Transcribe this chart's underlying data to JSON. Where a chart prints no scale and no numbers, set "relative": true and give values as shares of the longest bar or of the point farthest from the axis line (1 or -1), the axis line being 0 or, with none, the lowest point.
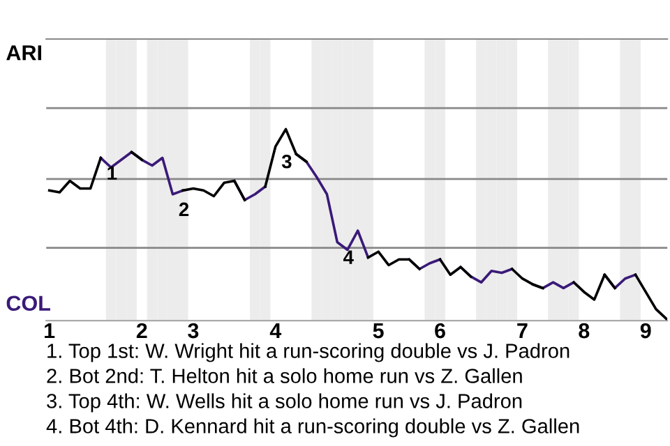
{
  "chart_data": {
    "type": "line",
    "relative": true,
    "categories": [
      "1",
      null,
      null,
      null,
      null,
      null,
      null,
      null,
      null,
      "2",
      null,
      null,
      null,
      null,
      "3",
      null,
      null,
      null,
      null,
      null,
      null,
      null,
      "4",
      null,
      null,
      null,
      null,
      null,
      null,
      null,
      null,
      null,
      "5",
      null,
      null,
      null,
      null,
      null,
      "6",
      null,
      null,
      null,
      null,
      null,
      null,
      null,
      "7",
      null,
      null,
      null,
      null,
      null,
      "8",
      null,
      null,
      null,
      null,
      null,
      "9",
      null,
      null
    ],
    "series": [
      {
        "color": "#3a1a78",
        "values": [
          null,
          null,
          null,
          null,
          null,
          0.85,
          0.8,
          0.84,
          0.88,
          0.84,
          0.81,
          0.85,
          0.66,
          0.68,
          null,
          null,
          null,
          null,
          0.73,
          0.63,
          0.66,
          0.7,
          null,
          null,
          0.87,
          0.83,
          0.75,
          0.66,
          0.41,
          0.37,
          0.47,
          0.33,
          null,
          null,
          null,
          0.32,
          0.27,
          0.3,
          0.32,
          null,
          0.28,
          0.23,
          0.2,
          0.26,
          0.25,
          0.27,
          null,
          0.19,
          0.17,
          0.2,
          0.17,
          0.2,
          null,
          null,
          0.24,
          0.17,
          0.22,
          0.24,
          null,
          null,
          null
        ]
      },
      {
        "color": "#000000",
        "values": [
          0.68,
          0.67,
          0.73,
          0.69,
          0.69,
          0.85,
          null,
          null,
          0.88,
          0.84,
          null,
          null,
          null,
          0.68,
          0.69,
          0.68,
          0.65,
          0.72,
          0.73,
          0.63,
          null,
          0.7,
          0.91,
          1.0,
          0.87,
          0.83,
          null,
          null,
          null,
          null,
          null,
          0.33,
          0.36,
          0.29,
          0.32,
          0.32,
          0.27,
          null,
          0.32,
          0.24,
          0.28,
          0.23,
          null,
          null,
          null,
          0.27,
          0.22,
          0.19,
          0.17,
          null,
          null,
          0.2,
          0.15,
          0.11,
          0.24,
          0.17,
          null,
          0.24,
          0.15,
          0.06,
          0.01
        ]
      }
    ],
    "ref_lines": [
      {
        "axis": "y",
        "value": 0.38,
        "color": "#888888"
      },
      {
        "axis": "y",
        "value": 0.74,
        "color": "#888888"
      },
      {
        "axis": "y",
        "value": 1.11,
        "color": "#888888"
      }
    ],
    "tick_labels": "x",
    "annotations": [
      "ARI",
      "COL",
      {
        "text": "1",
        "y": 0.85
      },
      {
        "text": "2",
        "y": 0.66
      },
      {
        "text": "3",
        "y": 0.91
      },
      {
        "text": "4",
        "y": 0.41
      },
      "1. Top 1st: W. Wright hit a run-scoring double vs J. Padron",
      "2. Bot 2nd: T. Helton hit a solo home run vs Z. Gallen",
      "3. Top 4th: W. Wells hit a solo home run vs J. Padron",
      "4. Bot 4th: D. Kennard hit a run-scoring double vs Z. Gallen"
    ]
  }
}
